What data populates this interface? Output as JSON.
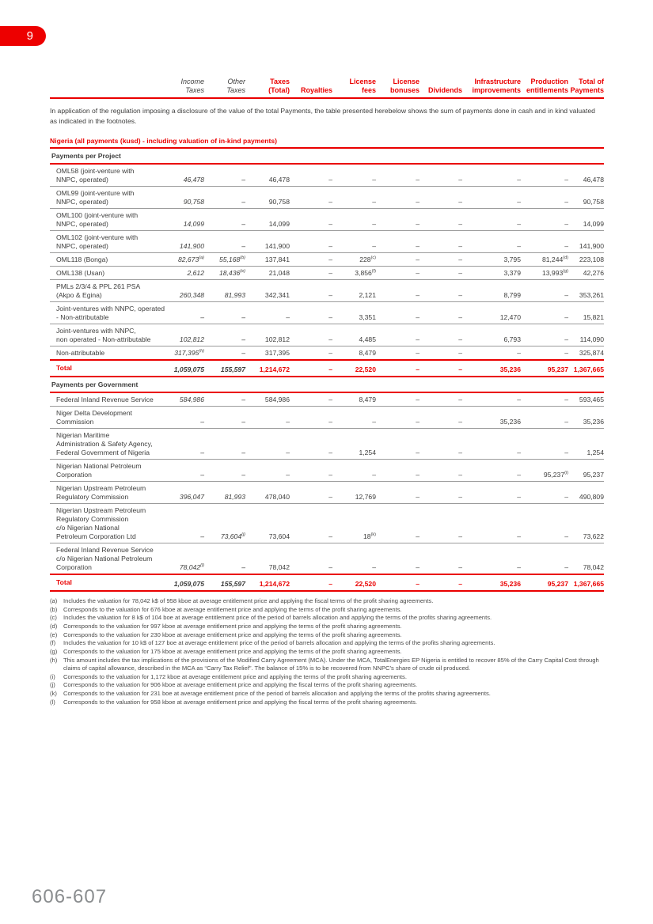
{
  "page": {
    "tab_number": "9",
    "folio": "606-607"
  },
  "colors": {
    "accent_red": "#ea0000",
    "tab_red": "#ed0000",
    "text_dark": "#3d3d3c",
    "footnote_gray": "#4a4a49",
    "folio_gray": "#8a8d8f"
  },
  "intro": "In application of the regulation imposing a disclosure of the value of the total Payments, the table presented herebelow shows the sum of payments done in cash and in kind valuated as indicated in the footnotes.",
  "table_title": "Nigeria (all payments (kusd) - including valuation of in-kind payments)",
  "columns": [
    {
      "lines": [
        "Income",
        "Taxes"
      ],
      "red": false
    },
    {
      "lines": [
        "Other",
        "Taxes"
      ],
      "red": false
    },
    {
      "lines": [
        "Taxes",
        "(Total)"
      ],
      "red": true
    },
    {
      "lines": [
        "",
        "Royalties"
      ],
      "red": true
    },
    {
      "lines": [
        "License",
        "fees"
      ],
      "red": true
    },
    {
      "lines": [
        "License",
        "bonuses"
      ],
      "red": true
    },
    {
      "lines": [
        "",
        "Dividends"
      ],
      "red": true
    },
    {
      "lines": [
        "Infrastructure",
        "improvements"
      ],
      "red": true
    },
    {
      "lines": [
        "Production",
        "entitlements"
      ],
      "red": true
    },
    {
      "lines": [
        "Total of",
        "Payments"
      ],
      "red": true
    }
  ],
  "sections": [
    {
      "header": "Payments per Project",
      "rows": [
        {
          "label": [
            "OML58 (joint-venture with",
            "NNPC, operated)"
          ],
          "values": [
            "46,478",
            "–",
            "46,478",
            "–",
            "–",
            "–",
            "–",
            "–",
            "–",
            "46,478"
          ]
        },
        {
          "label": [
            "OML99 (joint-venture with",
            "NNPC, operated)"
          ],
          "values": [
            "90,758",
            "–",
            "90,758",
            "–",
            "–",
            "–",
            "–",
            "–",
            "–",
            "90,758"
          ]
        },
        {
          "label": [
            "OML100 (joint-venture with",
            "NNPC, operated)"
          ],
          "values": [
            "14,099",
            "–",
            "14,099",
            "–",
            "–",
            "–",
            "–",
            "–",
            "–",
            "14,099"
          ]
        },
        {
          "label": [
            "OML102 (joint-venture with",
            "NNPC, operated)"
          ],
          "values": [
            "141,900",
            "–",
            "141,900",
            "–",
            "–",
            "–",
            "–",
            "–",
            "–",
            "141,900"
          ]
        },
        {
          "label": [
            "OML118 (Bonga)"
          ],
          "values": [
            "82,673^(a)",
            "55,168^(b)",
            "137,841",
            "–",
            "228^(c)",
            "–",
            "–",
            "3,795",
            "81,244^(d)",
            "223,108"
          ]
        },
        {
          "label": [
            "OML138 (Usan)"
          ],
          "values": [
            "2,612",
            "18,436^(e)",
            "21,048",
            "–",
            "3,856^(f)",
            "–",
            "–",
            "3,379",
            "13,993^(g)",
            "42,276"
          ]
        },
        {
          "label": [
            "PMLs 2/3/4 & PPL 261 PSA",
            "(Akpo & Egina)"
          ],
          "values": [
            "260,348",
            "81,993",
            "342,341",
            "–",
            "2,121",
            "–",
            "–",
            "8,799",
            "–",
            "353,261"
          ]
        },
        {
          "label": [
            "Joint-ventures with NNPC, operated",
            "- Non-attributable"
          ],
          "values": [
            "–",
            "–",
            "–",
            "–",
            "3,351",
            "–",
            "–",
            "12,470",
            "–",
            "15,821"
          ]
        },
        {
          "label": [
            "Joint-ventures with NNPC,",
            "non operated - Non-attributable"
          ],
          "values": [
            "102,812",
            "–",
            "102,812",
            "–",
            "4,485",
            "–",
            "–",
            "6,793",
            "–",
            "114,090"
          ]
        },
        {
          "label": [
            "Non-attributable"
          ],
          "values": [
            "317,395^(h)",
            "–",
            "317,395",
            "–",
            "8,479",
            "–",
            "–",
            "–",
            "–",
            "325,874"
          ]
        }
      ],
      "total": {
        "label": "Total",
        "values": [
          "1,059,075",
          "155,597",
          "1,214,672",
          "–",
          "22,520",
          "–",
          "–",
          "35,236",
          "95,237",
          "1,367,665"
        ]
      }
    },
    {
      "header": "Payments per Government",
      "rows": [
        {
          "label": [
            "Federal Inland Revenue Service"
          ],
          "values": [
            "584,986",
            "–",
            "584,986",
            "–",
            "8,479",
            "–",
            "–",
            "–",
            "–",
            "593,465"
          ]
        },
        {
          "label": [
            "Niger Delta Development",
            "Commission"
          ],
          "values": [
            "–",
            "–",
            "–",
            "–",
            "–",
            "–",
            "–",
            "35,236",
            "–",
            "35,236"
          ]
        },
        {
          "label": [
            "Nigerian Maritime",
            "Administration & Safety Agency,",
            "Federal Government of Nigeria"
          ],
          "values": [
            "–",
            "–",
            "–",
            "–",
            "1,254",
            "–",
            "–",
            "–",
            "–",
            "1,254"
          ]
        },
        {
          "label": [
            "Nigerian National Petroleum",
            "Corporation"
          ],
          "values": [
            "–",
            "–",
            "–",
            "–",
            "–",
            "–",
            "–",
            "–",
            "95,237^(i)",
            "95,237"
          ]
        },
        {
          "label": [
            "Nigerian Upstream Petroleum",
            "Regulatory Commission"
          ],
          "values": [
            "396,047",
            "81,993",
            "478,040",
            "–",
            "12,769",
            "–",
            "–",
            "–",
            "–",
            "490,809"
          ]
        },
        {
          "label": [
            "Nigerian Upstream Petroleum",
            "Regulatory Commission",
            "c/o Nigerian National",
            "Petroleum Corporation Ltd"
          ],
          "values": [
            "–",
            "73,604^(j)",
            "73,604",
            "–",
            "18^(k)",
            "–",
            "–",
            "–",
            "–",
            "73,622"
          ]
        },
        {
          "label": [
            "Federal Inland Revenue Service",
            "c/o Nigerian National Petroleum",
            "Corporation"
          ],
          "values": [
            "78,042^(l)",
            "–",
            "78,042",
            "–",
            "–",
            "–",
            "–",
            "–",
            "–",
            "78,042"
          ]
        }
      ],
      "total": {
        "label": "Total",
        "values": [
          "1,059,075",
          "155,597",
          "1,214,672",
          "–",
          "22,520",
          "–",
          "–",
          "35,236",
          "95,237",
          "1,367,665"
        ]
      }
    }
  ],
  "footnotes": [
    {
      "marker": "(a)",
      "text": "Includes the valuation for 78,042 k$ of 958 kboe at average entitlement price and applying the fiscal terms of the profit sharing agreements."
    },
    {
      "marker": "(b)",
      "text": "Corresponds to the valuation for 676 kboe at average entitlement price and applying the terms of the profit sharing agreements."
    },
    {
      "marker": "(c)",
      "text": "Includes the valuation for 8 k$ of 104 boe at average entitlement price of the period of barrels allocation and applying the terms of the profits sharing agreements."
    },
    {
      "marker": "(d)",
      "text": "Corresponds to the valuation for 997 kboe at average entitlement price and applying the terms of the profit sharing agreements."
    },
    {
      "marker": "(e)",
      "text": "Corresponds to the valuation for 230 kboe at average entitlement price and applying the terms of the profit sharing agreements."
    },
    {
      "marker": "(f)",
      "text": "Includes the valuation for 10 k$ of 127 boe at average entitlement price of the period of barrels allocation and applying the terms of the profits sharing agreements."
    },
    {
      "marker": "(g)",
      "text": "Corresponds to the valuation for 175 kboe at average entitlement price and applying the terms of the profit sharing agreements."
    },
    {
      "marker": "(h)",
      "text": "This amount includes the tax implications of the provisions of the Modified Carry Agreement (MCA). Under the MCA, TotalEnergies EP Nigeria is entitled to recover 85% of the Carry Capital Cost through claims of capital allowance, described in the MCA as “Carry Tax Relief”. The balance of 15% is to be recovered from NNPC’s share of crude oil produced."
    },
    {
      "marker": "(i)",
      "text": "Corresponds to the valuation for 1,172 kboe at average entitlement price and applying the terms of the profit sharing agreements."
    },
    {
      "marker": "(j)",
      "text": "Corresponds to the valuation for 906 kboe at average entitlement price and applying the fiscal terms of the profit sharing agreements."
    },
    {
      "marker": "(k)",
      "text": "Corresponds to the valuation for 231 boe at average entitlement price of the period of barrels allocation and applying the terms of the profits sharing agreements."
    },
    {
      "marker": "(l)",
      "text": "Corresponds to the valuation for 958 kboe at average entitlement price and applying the fiscal terms of the profit sharing agreements."
    }
  ]
}
